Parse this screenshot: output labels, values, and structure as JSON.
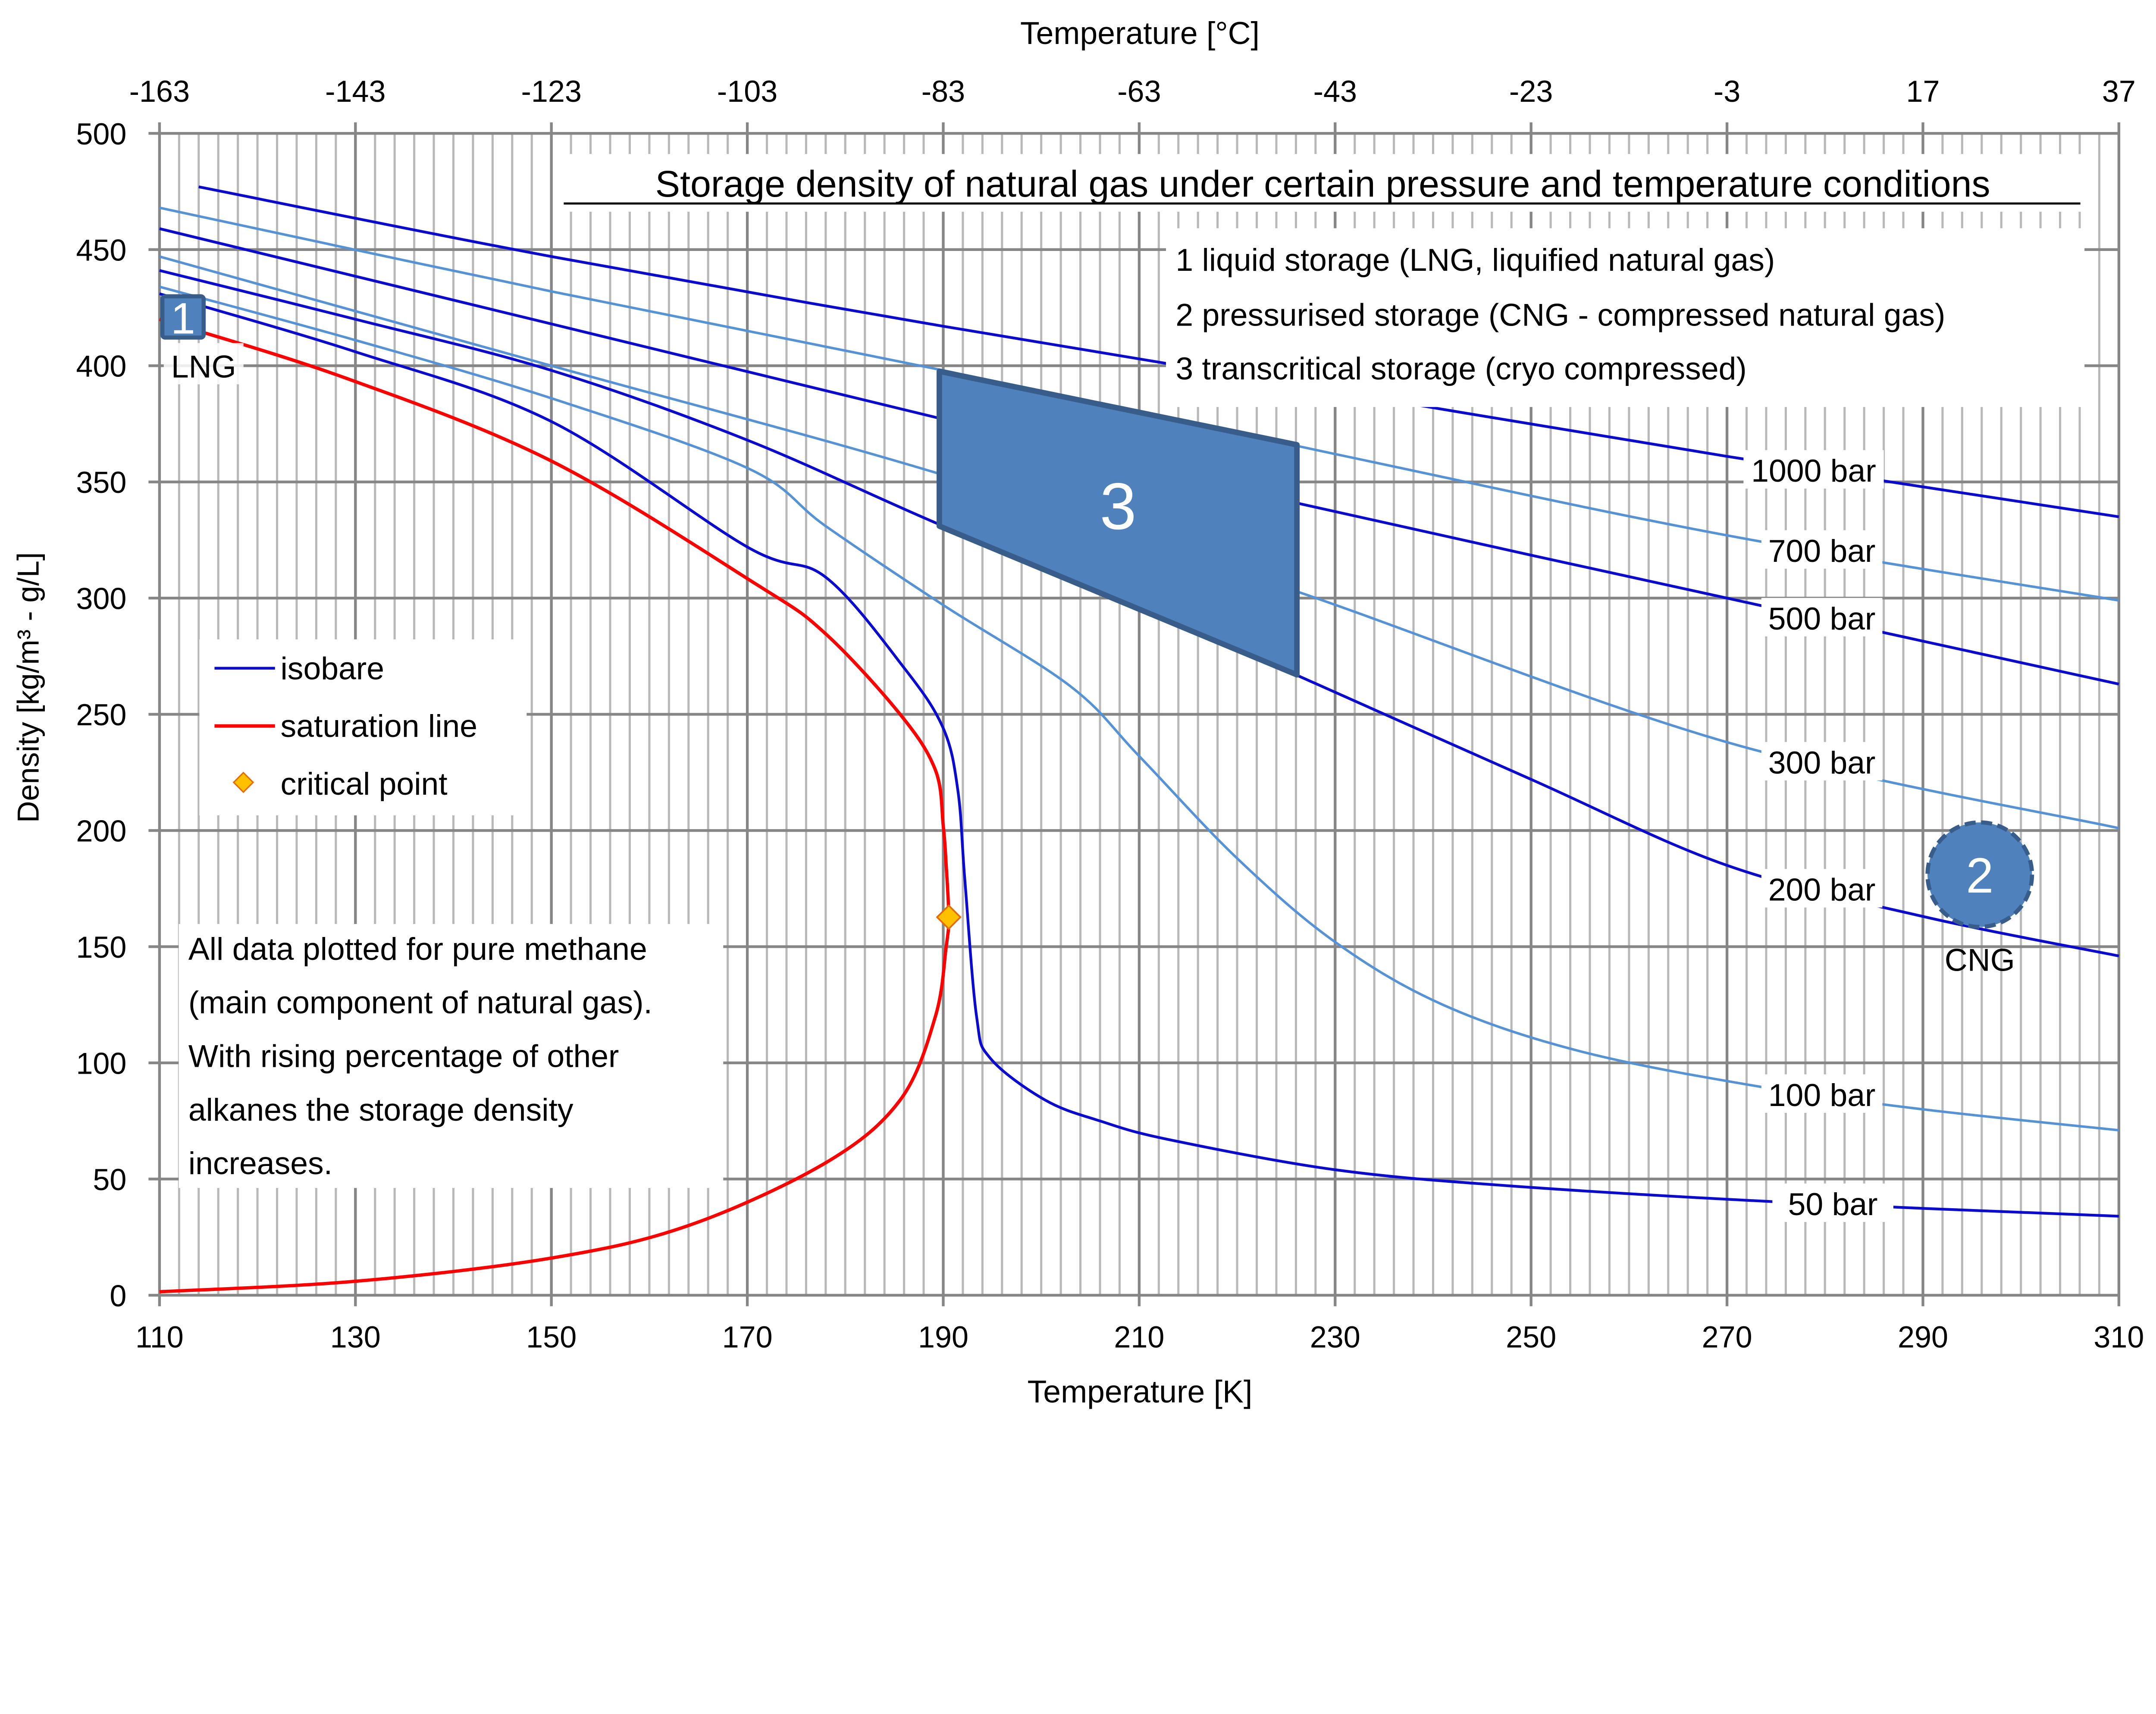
{
  "chart_data": {
    "type": "line",
    "title": "Storage density of natural gas under certain pressure and temperature conditions",
    "xlabel": "Temperature [K]",
    "x2label": "Temperature [°C]",
    "ylabel": "Density [kg/m³ - g/L]",
    "xlim": [
      110,
      310
    ],
    "ylim": [
      0,
      500
    ],
    "x_ticks": [
      "110",
      "130",
      "150",
      "170",
      "190",
      "210",
      "230",
      "250",
      "270",
      "290",
      "310"
    ],
    "x2_ticks": [
      "-163",
      "-143",
      "-123",
      "-103",
      "-83",
      "-63",
      "-43",
      "-23",
      "-3",
      "17",
      "37"
    ],
    "y_ticks": [
      "0",
      "50",
      "100",
      "150",
      "200",
      "250",
      "300",
      "350",
      "400",
      "450",
      "500"
    ],
    "grid": {
      "major_x_step": 20,
      "minor_x_step": 2,
      "y_step": 50,
      "on": true
    },
    "colors": {
      "isobar_dark": "#0b0bd0",
      "isobar_light": "#5592d6",
      "saturation": "#ff0000",
      "critical": "#ffc000",
      "region": "#4f81bd",
      "region_border": "#385d8a",
      "grid_major": "#868686",
      "grid_minor": "#b8b8b8"
    },
    "series": [
      {
        "name": "1000 bar",
        "style": "dark",
        "points": [
          [
            114,
            477
          ],
          [
            150,
            447
          ],
          [
            190,
            417
          ],
          [
            230,
            389
          ],
          [
            270,
            361
          ],
          [
            310,
            335
          ]
        ]
      },
      {
        "name": "700 bar",
        "style": "light",
        "points": [
          [
            110,
            468
          ],
          [
            150,
            432
          ],
          [
            190,
            398
          ],
          [
            230,
            362
          ],
          [
            270,
            327
          ],
          [
            310,
            299
          ]
        ]
      },
      {
        "name": "500 bar",
        "style": "dark",
        "points": [
          [
            110,
            459
          ],
          [
            150,
            418
          ],
          [
            190,
            377
          ],
          [
            226,
            341
          ],
          [
            270,
            300
          ],
          [
            310,
            263
          ]
        ]
      },
      {
        "name": "300 bar",
        "style": "light",
        "points": [
          [
            110,
            447
          ],
          [
            150,
            400
          ],
          [
            190,
            353
          ],
          [
            226,
            303
          ],
          [
            270,
            238
          ],
          [
            310,
            201
          ]
        ]
      },
      {
        "name": "200 bar",
        "style": "dark",
        "points": [
          [
            110,
            441
          ],
          [
            130,
            420
          ],
          [
            150,
            398
          ],
          [
            170,
            368
          ],
          [
            190,
            331
          ],
          [
            210,
            297
          ],
          [
            226,
            267
          ],
          [
            250,
            222
          ],
          [
            270,
            185
          ],
          [
            290,
            163
          ],
          [
            310,
            146
          ]
        ]
      },
      {
        "name": "100 bar",
        "style": "light",
        "points": [
          [
            110,
            434
          ],
          [
            130,
            411
          ],
          [
            150,
            386
          ],
          [
            170,
            356
          ],
          [
            178,
            331
          ],
          [
            190,
            297
          ],
          [
            203,
            262
          ],
          [
            210,
            232
          ],
          [
            220,
            188
          ],
          [
            230,
            152
          ],
          [
            241,
            125
          ],
          [
            255,
            105
          ],
          [
            273,
            90
          ],
          [
            290,
            80
          ],
          [
            310,
            71
          ]
        ]
      },
      {
        "name": "50 bar",
        "style": "dark",
        "points": [
          [
            110,
            431
          ],
          [
            130,
            406
          ],
          [
            150,
            376
          ],
          [
            170,
            322
          ],
          [
            178,
            309
          ],
          [
            186,
            270
          ],
          [
            190,
            244
          ],
          [
            191.5,
            217
          ],
          [
            192.2,
            179
          ],
          [
            193.4,
            120
          ],
          [
            194.8,
            102
          ],
          [
            200.4,
            84
          ],
          [
            206,
            75
          ],
          [
            213,
            67
          ],
          [
            230,
            54
          ],
          [
            248,
            47
          ],
          [
            276,
            40
          ],
          [
            310,
            34
          ]
        ]
      }
    ],
    "saturation_line": {
      "name": "saturation line",
      "points": [
        [
          110,
          1.5
        ],
        [
          130,
          6
        ],
        [
          150,
          16
        ],
        [
          164,
          30
        ],
        [
          178,
          57
        ],
        [
          185.6,
          84
        ],
        [
          189.2,
          120
        ],
        [
          190.3,
          150
        ],
        [
          190.56,
          162.7
        ],
        [
          190.3,
          185
        ],
        [
          190,
          202
        ],
        [
          189.2,
          226
        ],
        [
          185.6,
          250
        ],
        [
          177.9,
          285
        ],
        [
          170.9,
          306
        ],
        [
          150,
          359
        ],
        [
          128.8,
          395
        ],
        [
          110,
          420
        ]
      ]
    },
    "critical_point": {
      "name": "critical point",
      "x": 190.56,
      "y": 162.7
    },
    "legend": [
      {
        "label": "isobare",
        "kind": "line",
        "style": "dark"
      },
      {
        "label": "saturation line",
        "kind": "line",
        "style": "saturation"
      },
      {
        "label": "critical point",
        "kind": "marker"
      }
    ],
    "storage_legend": [
      "1 liquid storage (LNG, liquified natural gas)",
      "2 pressurised storage (CNG - compressed natural gas)",
      "3 transcritical storage (cryo compressed)"
    ],
    "note": [
      "All data plotted for pure methane",
      "(main component of natural gas).",
      "With rising percentage of other",
      "alkanes the storage density",
      "increases."
    ],
    "regions": [
      {
        "id": "1",
        "label": "LNG",
        "shape": "square",
        "x": 112.4,
        "y": 421
      },
      {
        "id": "2",
        "label": "CNG",
        "shape": "circle",
        "x": 295.8,
        "y": 181
      },
      {
        "id": "3",
        "label": "",
        "shape": "polygon",
        "vertices": [
          [
            189.6,
            397.6
          ],
          [
            226.1,
            366
          ],
          [
            226.1,
            267
          ],
          [
            189.6,
            331
          ]
        ]
      }
    ]
  }
}
